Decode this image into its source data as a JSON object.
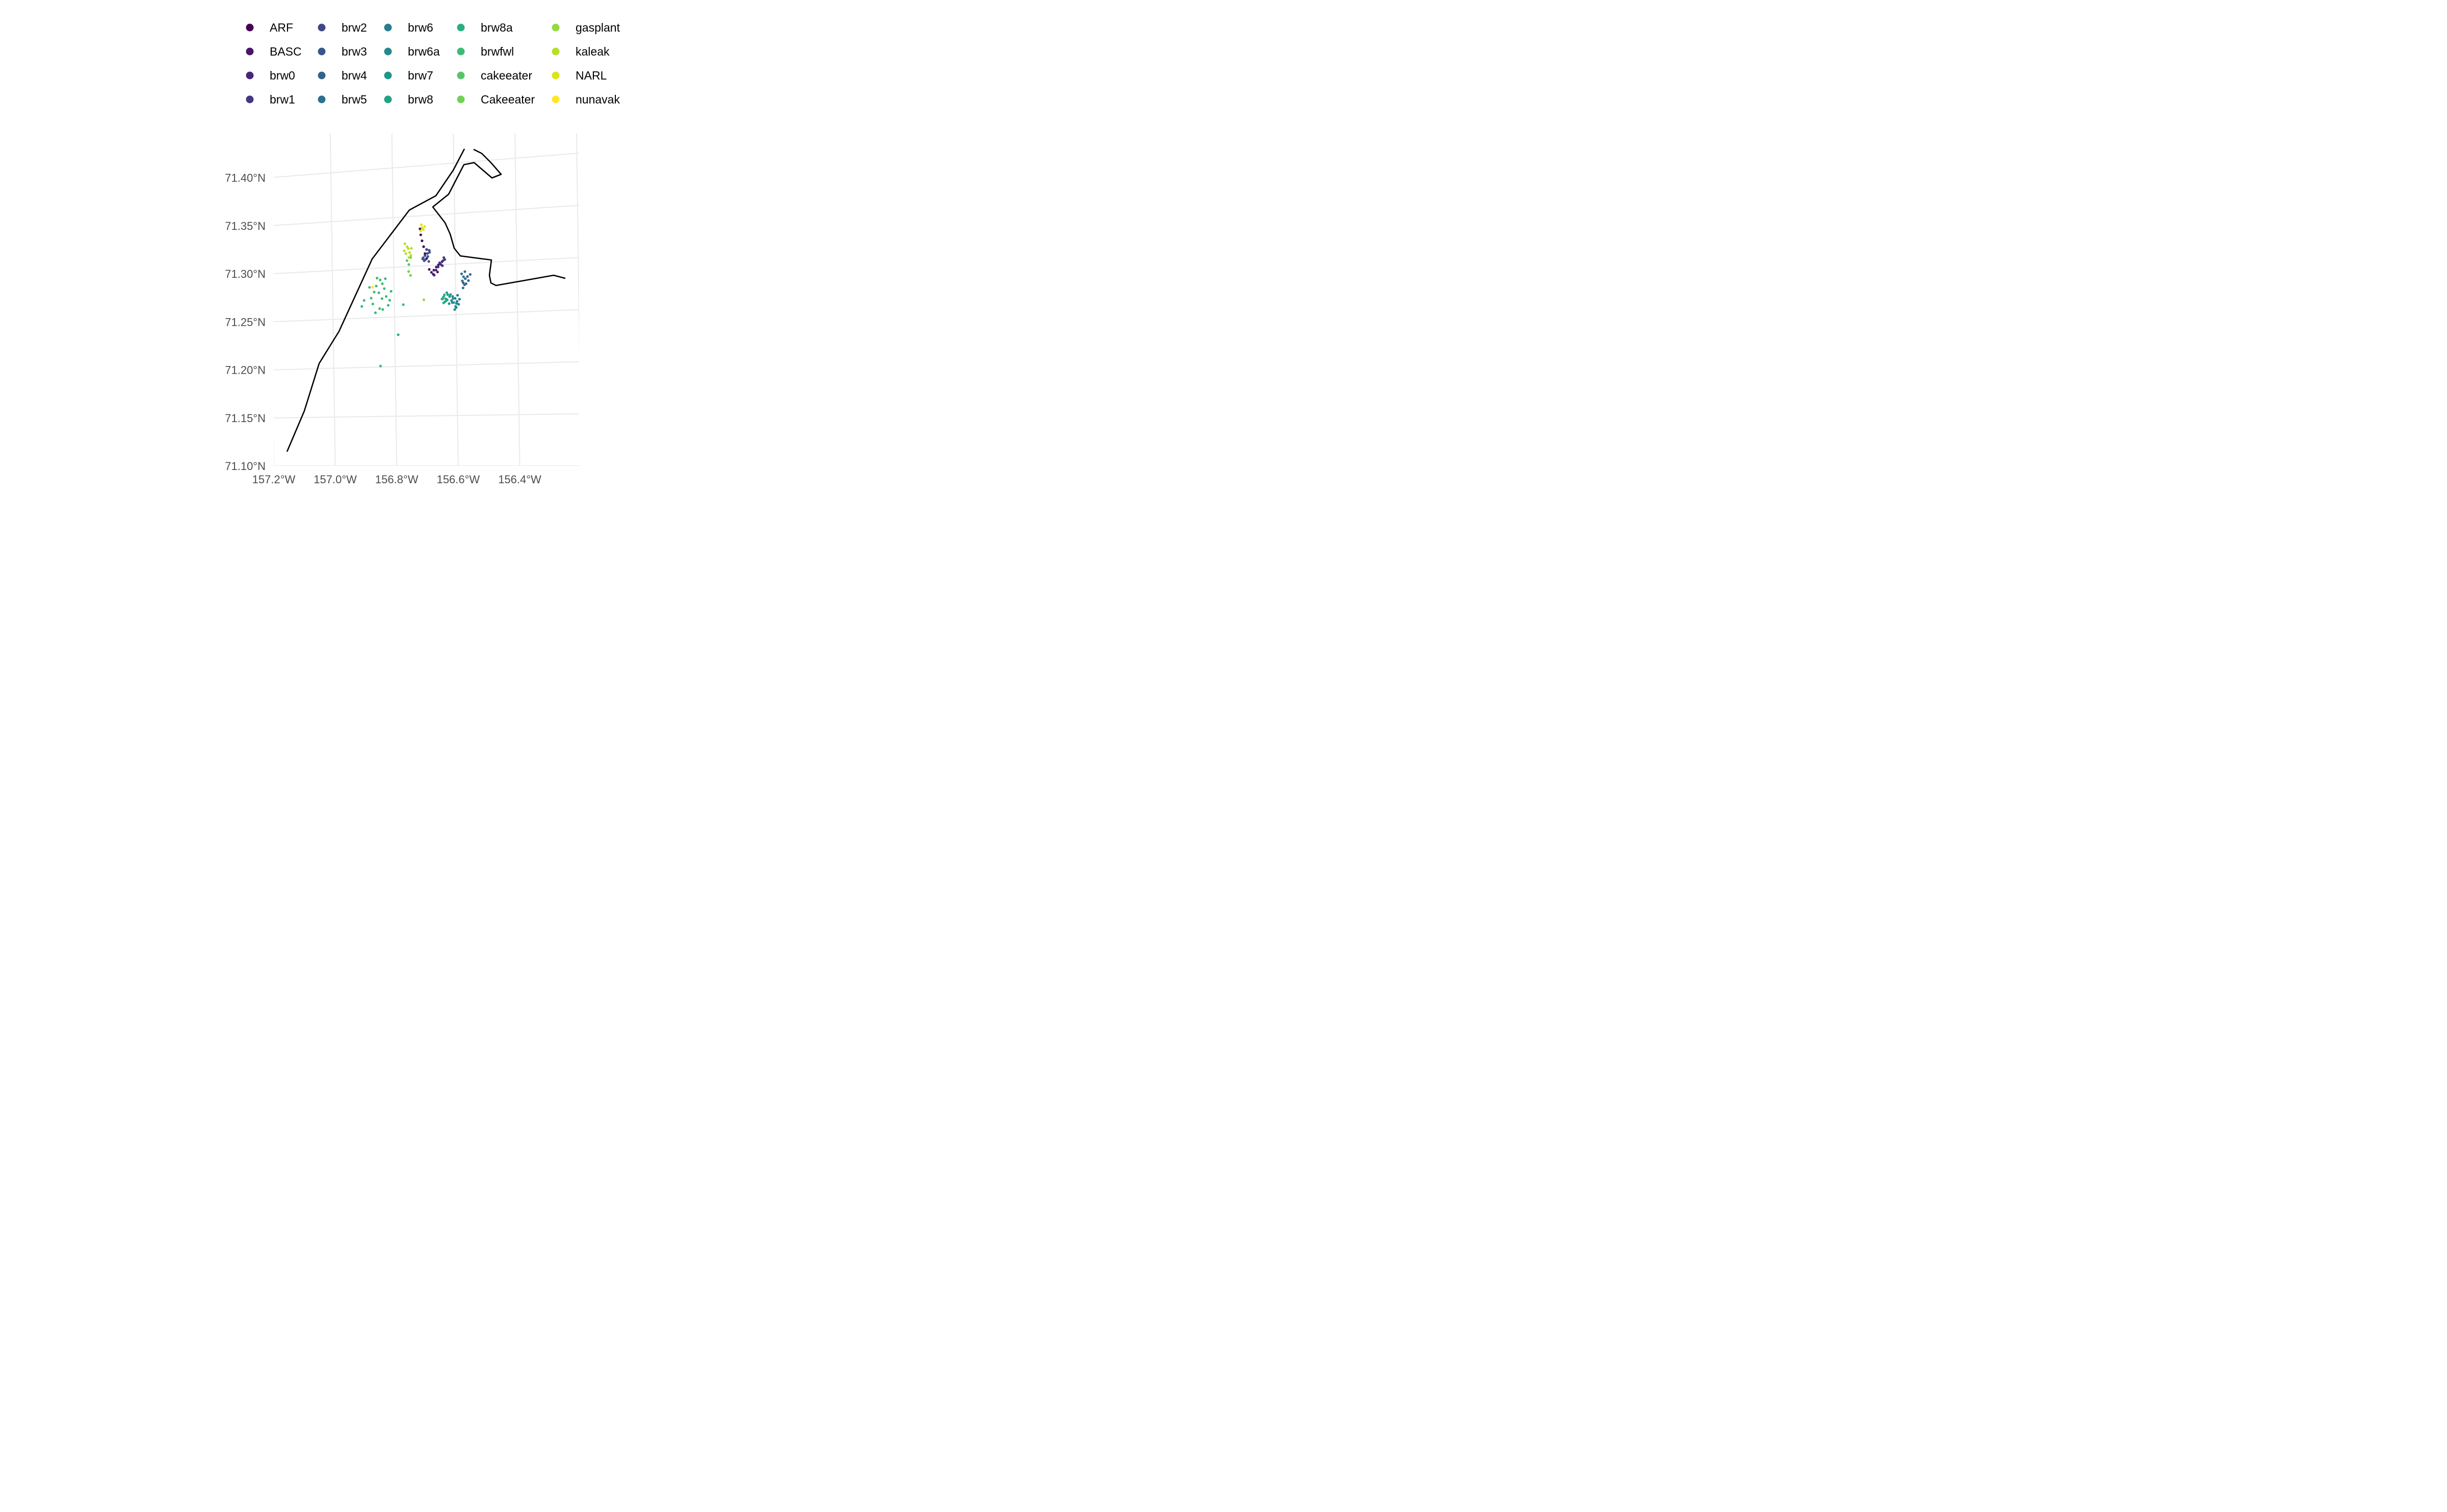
{
  "chart_data": {
    "type": "scatter",
    "title": "",
    "xlabel": "",
    "ylabel": "",
    "legend_position": "top",
    "grid": true,
    "x_axis": {
      "range": [
        -157.2,
        -156.3
      ],
      "ticks": [
        -157.2,
        -157.0,
        -156.8,
        -156.6,
        -156.4
      ],
      "tick_labels": [
        "157.2°W",
        "157.0°W",
        "156.8°W",
        "156.6°W",
        "156.4°W"
      ]
    },
    "y_axis": {
      "range": [
        71.1,
        71.45
      ],
      "ticks": [
        71.1,
        71.15,
        71.2,
        71.25,
        71.3,
        71.35,
        71.4
      ],
      "tick_labels": [
        "71.10°N",
        "71.15°N",
        "71.20°N",
        "71.25°N",
        "71.30°N",
        "71.35°N",
        "71.40°N"
      ]
    },
    "series": [
      {
        "name": "ARF",
        "color": "#440154",
        "points": [
          [
            -156.693,
            71.307
          ],
          [
            -156.698,
            71.312
          ],
          [
            -156.702,
            71.319
          ],
          [
            -156.707,
            71.325
          ],
          [
            -156.711,
            71.331
          ],
          [
            -156.713,
            71.337
          ]
        ]
      },
      {
        "name": "BASC",
        "color": "#481567",
        "points": [
          [
            -156.678,
            71.293
          ],
          [
            -156.67,
            71.295
          ],
          [
            -156.662,
            71.298
          ],
          [
            -156.655,
            71.3
          ],
          [
            -156.672,
            71.291
          ],
          [
            -156.685,
            71.296
          ]
        ]
      },
      {
        "name": "brw0",
        "color": "#482677",
        "points": [
          [
            -156.663,
            71.295
          ],
          [
            -156.656,
            71.298
          ],
          [
            -156.649,
            71.301
          ],
          [
            -156.643,
            71.303
          ],
          [
            -156.658,
            71.293
          ],
          [
            -156.669,
            71.29
          ]
        ]
      },
      {
        "name": "brw1",
        "color": "#453781",
        "points": [
          [
            -156.646,
            71.3
          ],
          [
            -156.64,
            71.304
          ],
          [
            -156.634,
            71.305
          ],
          [
            -156.651,
            71.302
          ],
          [
            -156.637,
            71.307
          ],
          [
            -156.642,
            71.299
          ]
        ]
      },
      {
        "name": "brw2",
        "color": "#404788",
        "points": [
          [
            -156.706,
            71.307
          ],
          [
            -156.698,
            71.31
          ],
          [
            -156.69,
            71.312
          ],
          [
            -156.684,
            71.315
          ],
          [
            -156.701,
            71.305
          ],
          [
            -156.693,
            71.316
          ]
        ]
      },
      {
        "name": "brw3",
        "color": "#39568c",
        "points": [
          [
            -156.697,
            71.306
          ],
          [
            -156.689,
            71.309
          ],
          [
            -156.683,
            71.313
          ],
          [
            -156.692,
            71.316
          ],
          [
            -156.704,
            71.308
          ],
          [
            -156.686,
            71.304
          ]
        ]
      },
      {
        "name": "brw4",
        "color": "#33638d",
        "points": [
          [
            -156.575,
            71.281
          ],
          [
            -156.568,
            71.285
          ],
          [
            -156.561,
            71.287
          ],
          [
            -156.552,
            71.289
          ],
          [
            -156.566,
            71.28
          ],
          [
            -156.558,
            71.283
          ]
        ]
      },
      {
        "name": "brw5",
        "color": "#2d708e",
        "points": [
          [
            -156.58,
            71.29
          ],
          [
            -156.574,
            71.287
          ],
          [
            -156.578,
            71.283
          ],
          [
            -156.571,
            71.279
          ],
          [
            -156.576,
            71.276
          ],
          [
            -156.569,
            71.292
          ]
        ]
      },
      {
        "name": "brw6",
        "color": "#287d8e",
        "points": [
          [
            -156.602,
            71.266
          ],
          [
            -156.596,
            71.263
          ],
          [
            -156.591,
            71.26
          ],
          [
            -156.599,
            71.257
          ],
          [
            -156.594,
            71.269
          ],
          [
            -156.588,
            71.265
          ]
        ]
      },
      {
        "name": "brw6a",
        "color": "#238a8d",
        "points": [
          [
            -156.614,
            71.264
          ],
          [
            -156.607,
            71.262
          ],
          [
            -156.601,
            71.258
          ],
          [
            -156.61,
            71.268
          ],
          [
            -156.604,
            71.255
          ],
          [
            -156.598,
            71.261
          ]
        ]
      },
      {
        "name": "brw7",
        "color": "#1f968b",
        "points": [
          [
            -156.628,
            71.265
          ],
          [
            -156.62,
            71.268
          ],
          [
            -156.612,
            71.262
          ],
          [
            -156.622,
            71.261
          ],
          [
            -156.617,
            71.27
          ],
          [
            -156.609,
            71.266
          ]
        ]
      },
      {
        "name": "brw8",
        "color": "#20a387",
        "points": [
          [
            -156.64,
            71.268
          ],
          [
            -156.633,
            71.266
          ],
          [
            -156.626,
            71.27
          ],
          [
            -156.636,
            71.263
          ],
          [
            -156.629,
            71.272
          ],
          [
            -156.643,
            71.266
          ]
        ]
      },
      {
        "name": "brw8a",
        "color": "#29af7f",
        "points": [
          [
            -156.645,
            71.266
          ],
          [
            -156.637,
            71.27
          ],
          [
            -156.631,
            71.264
          ],
          [
            -156.64,
            71.262
          ],
          [
            -156.789,
            71.232
          ]
        ]
      },
      {
        "name": "brwfwl",
        "color": "#3cbb75",
        "points": [
          [
            -156.875,
            71.27
          ],
          [
            -156.865,
            71.276
          ],
          [
            -156.858,
            71.282
          ],
          [
            -156.85,
            71.275
          ],
          [
            -156.845,
            71.288
          ],
          [
            -156.84,
            71.269
          ],
          [
            -156.832,
            71.279
          ],
          [
            -156.826,
            71.271
          ],
          [
            -156.87,
            71.264
          ],
          [
            -156.88,
            71.281
          ],
          [
            -156.838,
            71.284
          ],
          [
            -156.855,
            71.29
          ],
          [
            -156.82,
            71.262
          ],
          [
            -156.81,
            71.276
          ],
          [
            -156.848,
            71.259
          ],
          [
            -156.862,
            71.255
          ],
          [
            -156.898,
            71.268
          ],
          [
            -156.906,
            71.262
          ],
          [
            -156.838,
            71.258
          ],
          [
            -156.815,
            71.267
          ],
          [
            -156.771,
            71.262
          ],
          [
            -156.828,
            71.289
          ],
          [
            -156.848,
            71.201
          ]
        ]
      },
      {
        "name": "cakeeater",
        "color": "#55c667",
        "points": [
          [
            -156.757,
            71.306
          ],
          [
            -156.751,
            71.302
          ],
          [
            -156.745,
            71.309
          ]
        ]
      },
      {
        "name": "Cakeeater",
        "color": "#73d055",
        "points": [
          [
            -156.752,
            71.295
          ],
          [
            -156.746,
            71.291
          ]
        ]
      },
      {
        "name": "gasplant",
        "color": "#95d840",
        "points": [
          [
            -156.704,
            71.266
          ]
        ]
      },
      {
        "name": "kaleak",
        "color": "#b8de29",
        "points": [
          [
            -156.76,
            71.313
          ],
          [
            -156.752,
            71.318
          ],
          [
            -156.748,
            71.314
          ],
          [
            -156.756,
            71.32
          ],
          [
            -156.744,
            71.311
          ],
          [
            -156.765,
            71.316
          ],
          [
            -156.75,
            71.309
          ],
          [
            -156.763,
            71.323
          ],
          [
            -156.742,
            71.318
          ]
        ]
      },
      {
        "name": "NARL",
        "color": "#dce319",
        "points": [
          [
            -156.711,
            71.335
          ],
          [
            -156.706,
            71.338
          ],
          [
            -156.702,
            71.336
          ],
          [
            -156.708,
            71.341
          ],
          [
            -156.698,
            71.339
          ]
        ]
      },
      {
        "name": "nunavak",
        "color": "#fde725",
        "points": [
          [
            -156.87,
            71.281
          ]
        ]
      }
    ]
  }
}
